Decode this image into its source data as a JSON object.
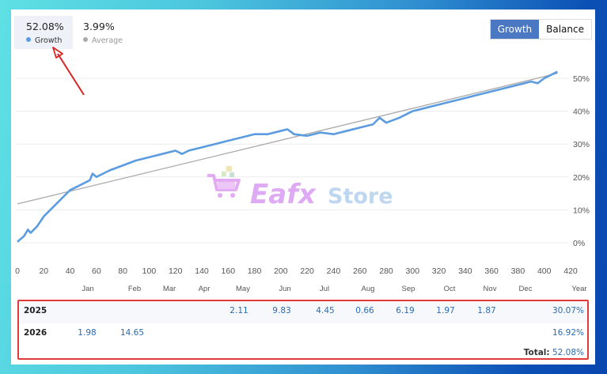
{
  "stats": {
    "growth": {
      "value": "52.08%",
      "label": "Growth",
      "dot_color": "#5b9be0"
    },
    "average": {
      "value": "3.99%",
      "label": "Average",
      "dot_color": "#aaaaaa"
    }
  },
  "toggle": {
    "growth_label": "Growth",
    "balance_label": "Balance",
    "active": "growth"
  },
  "watermark": {
    "part1": "Eafx",
    "part2": "Store"
  },
  "colors": {
    "accent": "#4a78c2",
    "line": "#5b9be0",
    "trend": "#a9a9a9",
    "highlight_box": "#e23a3a",
    "value_text": "#2b6cb0"
  },
  "chart_data": {
    "type": "line",
    "title": "",
    "xlabel": "",
    "ylabel": "",
    "x_ticks": [
      0,
      20,
      40,
      60,
      80,
      100,
      120,
      140,
      160,
      180,
      200,
      220,
      240,
      260,
      280,
      300,
      320,
      340,
      360,
      380,
      400,
      420
    ],
    "y_ticks": [
      "0%",
      "10%",
      "20%",
      "30%",
      "40%",
      "50%"
    ],
    "xlim": [
      0,
      420
    ],
    "ylim": [
      0,
      50
    ],
    "month_labels": [
      "Jan",
      "Feb",
      "Mar",
      "Apr",
      "May",
      "Jun",
      "Jul",
      "Aug",
      "Sep",
      "Oct",
      "Nov",
      "Dec",
      "Year"
    ],
    "grid": true,
    "series": [
      {
        "name": "Growth",
        "color": "#5b9be0",
        "x": [
          0,
          5,
          8,
          10,
          15,
          20,
          25,
          30,
          35,
          40,
          45,
          50,
          55,
          57,
          60,
          65,
          70,
          80,
          90,
          100,
          110,
          120,
          125,
          130,
          140,
          150,
          160,
          170,
          180,
          190,
          200,
          205,
          210,
          220,
          230,
          240,
          250,
          260,
          270,
          275,
          280,
          290,
          300,
          310,
          320,
          330,
          340,
          350,
          360,
          370,
          380,
          390,
          395,
          400,
          410
        ],
        "y": [
          0.3,
          2,
          4,
          3,
          5,
          8,
          10,
          12,
          14,
          16,
          17,
          18,
          19,
          21,
          20,
          21,
          22,
          23.5,
          25,
          26,
          27,
          28,
          27,
          28,
          29,
          30,
          31,
          32,
          33,
          33,
          34,
          34.5,
          33,
          32.5,
          33.5,
          33,
          34,
          35,
          36,
          38,
          36.5,
          38,
          40,
          41,
          42,
          43,
          44,
          45,
          46,
          47,
          48,
          49,
          48.5,
          50,
          52
        ]
      },
      {
        "name": "Trend",
        "color": "#a9a9a9",
        "x": [
          0,
          410
        ],
        "y": [
          11.8,
          51.5
        ]
      }
    ]
  },
  "table": {
    "rows": [
      {
        "year": "2025",
        "values": {
          "May": "2.11",
          "Jun": "9.83",
          "Jul": "4.45",
          "Aug": "0.66",
          "Sep": "6.19",
          "Oct": "1.97",
          "Nov": "1.87"
        },
        "year_total": "30.07%"
      },
      {
        "year": "2026",
        "values": {
          "Jan": "1.98",
          "Feb": "14.65"
        },
        "year_total": "16.92%"
      }
    ],
    "total_label": "Total:",
    "total_value": "52.08%"
  }
}
